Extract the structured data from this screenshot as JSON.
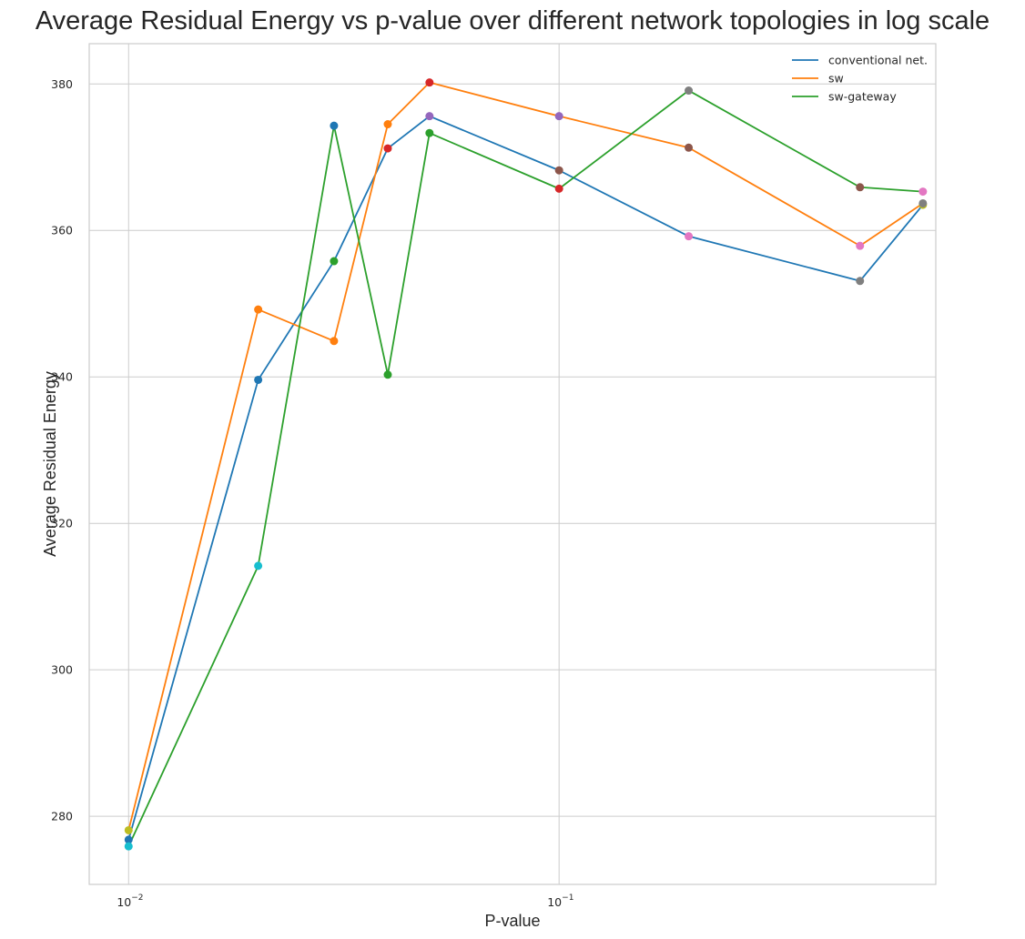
{
  "chart_data": {
    "type": "line",
    "title": "Average Residual Energy vs p-value over different network topologies in log scale",
    "xlabel": "P-value",
    "ylabel": "Average Residual Energy",
    "xscale": "log",
    "xlim": [
      0.0081,
      0.75
    ],
    "ylim": [
      270.7,
      385.5
    ],
    "xticks": [
      {
        "value": 0.01,
        "base": "10",
        "exp": "−2"
      },
      {
        "value": 0.1,
        "base": "10",
        "exp": "−1"
      }
    ],
    "yticks": [
      280,
      300,
      320,
      340,
      360,
      380
    ],
    "grid": true,
    "legend_position": "top-right",
    "x": [
      0.01,
      0.02,
      0.03,
      0.04,
      0.05,
      0.1,
      0.2,
      0.5,
      0.7
    ],
    "series": [
      {
        "name": "conventional net.",
        "color": "#1f77b4",
        "values": [
          276.8,
          339.6,
          355.8,
          371.2,
          375.6,
          368.2,
          359.2,
          353.1,
          363.5
        ]
      },
      {
        "name": "sw",
        "color": "#ff7f0e",
        "values": [
          278.1,
          349.2,
          344.9,
          374.5,
          380.2,
          375.6,
          371.3,
          357.9,
          363.7
        ]
      },
      {
        "name": "sw-gateway",
        "color": "#2ca02c",
        "values": [
          275.9,
          314.2,
          374.3,
          340.3,
          373.3,
          365.7,
          379.1,
          365.9,
          365.3
        ]
      }
    ],
    "marker_colors": {
      "conventional net.": [
        "#1f77b4",
        "#1f77b4",
        "#2ca02c",
        "#d62728",
        "#9467bd",
        "#8c564b",
        "#e377c2",
        "#7f7f7f",
        "#bcbd22"
      ],
      "sw": [
        "#bcbd22",
        "#ff7f0e",
        "#ff7f0e",
        "#ff7f0e",
        "#d62728",
        "#9467bd",
        "#8c564b",
        "#e377c2",
        "#7f7f7f"
      ],
      "sw-gateway": [
        "#17becf",
        "#17becf",
        "#1f77b4",
        "#2ca02c",
        "#2ca02c",
        "#d62728",
        "#7f7f7f",
        "#8c564b",
        "#e377c2"
      ]
    }
  }
}
